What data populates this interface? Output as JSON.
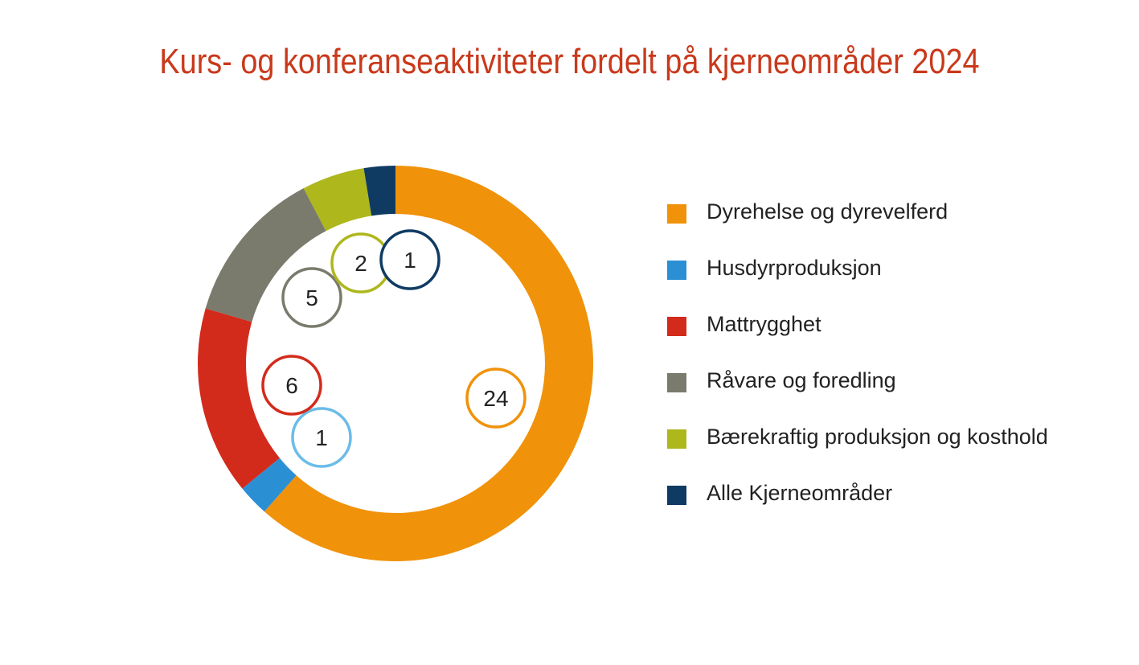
{
  "chart_data": {
    "type": "pie",
    "variant": "donut",
    "title": "Kurs- og konferanseaktiviteter fordelt på kjerneområder 2024",
    "series": [
      {
        "name": "Dyrehelse og dyrevelferd",
        "value": 24,
        "color": "#f0920a"
      },
      {
        "name": "Husdyrproduksjon",
        "value": 1,
        "color": "#2b8fd4"
      },
      {
        "name": "Mattrygghet",
        "value": 6,
        "color": "#d32b1b"
      },
      {
        "name": "Råvare og foredling",
        "value": 5,
        "color": "#7a7b6c"
      },
      {
        "name": "Bærekraftig produksjon og kosthold",
        "value": 2,
        "color": "#aeb71b"
      },
      {
        "name": "Alle Kjerneområder",
        "value": 1,
        "color": "#0f3b63"
      }
    ],
    "value_labels": [
      {
        "series": "Dyrehelse og dyrevelferd",
        "text": "24",
        "color": "#f0920a"
      },
      {
        "series": "Husdyrproduksjon",
        "text": "1",
        "color": "#6bbce8"
      },
      {
        "series": "Mattrygghet",
        "text": "6",
        "color": "#d32b1b"
      },
      {
        "series": "Råvare og foredling",
        "text": "5",
        "color": "#7a7b6c"
      },
      {
        "series": "Bærekraftig produksjon og kosthold",
        "text": "2",
        "color": "#aeb71b"
      },
      {
        "series": "Alle Kjerneområder",
        "text": "1",
        "color": "#0f3b63"
      }
    ],
    "legend_position": "right"
  }
}
